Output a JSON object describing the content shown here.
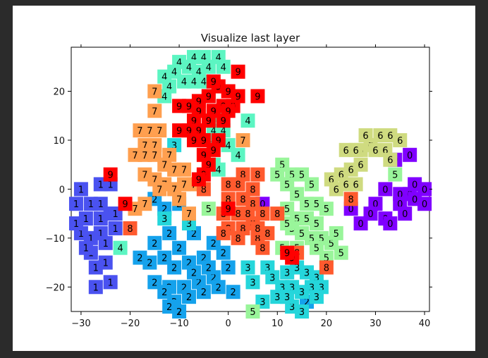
{
  "colors": {
    "page_background": "#2b2b2b",
    "figure_background": "#ffffff",
    "class_colors": {
      "0": "#8000ff",
      "1": "#4a52f0",
      "2": "#15a2ec",
      "3": "#25d6db",
      "4": "#5cf5c2",
      "5": "#99f59a",
      "6": "#cfdb80",
      "7": "#ff9f4f",
      "8": "#ff5a2e",
      "9": "#ff0000"
    }
  },
  "chart_data": {
    "type": "scatter",
    "title": "Visualize last layer",
    "xlabel": "",
    "ylabel": "",
    "xlim": [
      -32,
      41
    ],
    "ylim": [
      -25,
      29
    ],
    "xticks": [
      -30,
      -20,
      -10,
      0,
      10,
      20,
      30,
      40
    ],
    "yticks": [
      -20,
      -10,
      0,
      10,
      20
    ],
    "grid": false,
    "marker": "digit label drawn on a square colored by class",
    "series": [
      {
        "label": "0",
        "points": [
          [
            37,
            7
          ],
          [
            34,
            6
          ],
          [
            32,
            0
          ],
          [
            35,
            -1
          ],
          [
            37,
            -1
          ],
          [
            40,
            0
          ],
          [
            38,
            -2
          ],
          [
            30,
            -3
          ],
          [
            35,
            -3
          ],
          [
            29,
            -5
          ],
          [
            32,
            -6
          ],
          [
            36,
            -5
          ],
          [
            40,
            -3
          ],
          [
            7,
            -3
          ],
          [
            25,
            -4
          ],
          [
            33,
            -7
          ],
          [
            27,
            -7
          ],
          [
            38,
            1
          ]
        ]
      },
      {
        "label": "1",
        "points": [
          [
            -30,
            0
          ],
          [
            -26,
            1
          ],
          [
            -24,
            1
          ],
          [
            -28,
            -3
          ],
          [
            -31,
            -3
          ],
          [
            -26,
            -3
          ],
          [
            -24,
            -5
          ],
          [
            -29,
            -6
          ],
          [
            -26,
            -6
          ],
          [
            -23,
            -5
          ],
          [
            -30,
            -9
          ],
          [
            -28,
            -10
          ],
          [
            -26,
            -9
          ],
          [
            -25,
            -11
          ],
          [
            -28,
            -13
          ],
          [
            -27,
            -16
          ],
          [
            -25,
            -15
          ],
          [
            -24,
            -19
          ],
          [
            -27,
            -20
          ],
          [
            -23,
            -8
          ],
          [
            -31,
            -7
          ],
          [
            -29,
            -12
          ]
        ]
      },
      {
        "label": "2",
        "points": [
          [
            -15,
            -2
          ],
          [
            -13,
            -4
          ],
          [
            -10,
            -3
          ],
          [
            -15,
            -11
          ],
          [
            -12,
            -9
          ],
          [
            -10,
            -12
          ],
          [
            -7,
            -9
          ],
          [
            -3,
            -11
          ],
          [
            -1,
            -13
          ],
          [
            -5,
            -14
          ],
          [
            -8,
            -15
          ],
          [
            -11,
            -16
          ],
          [
            -13,
            -14
          ],
          [
            -16,
            -15
          ],
          [
            -18,
            -14
          ],
          [
            -15,
            -19
          ],
          [
            -12,
            -20
          ],
          [
            -9,
            -20
          ],
          [
            -6,
            -19
          ],
          [
            -3,
            -18
          ],
          [
            -5,
            -21
          ],
          [
            -8,
            -22
          ],
          [
            -11,
            -23
          ],
          [
            -13,
            -21
          ],
          [
            -2,
            -20
          ],
          [
            0,
            -16
          ],
          [
            -7,
            -17
          ],
          [
            -12,
            -24
          ],
          [
            -10,
            -25
          ],
          [
            1,
            -21
          ],
          [
            16,
            -23
          ],
          [
            -4,
            -16
          ]
        ]
      },
      {
        "label": "3",
        "points": [
          [
            -11,
            9
          ],
          [
            -13,
            -6
          ],
          [
            -8,
            -7
          ],
          [
            4,
            -16
          ],
          [
            8,
            -16
          ],
          [
            12,
            -17
          ],
          [
            14,
            -16
          ],
          [
            16,
            -17
          ],
          [
            18,
            -18
          ],
          [
            9,
            -18
          ],
          [
            11,
            -20
          ],
          [
            13,
            -20
          ],
          [
            15,
            -21
          ],
          [
            17,
            -20
          ],
          [
            19,
            -20
          ],
          [
            10,
            -22
          ],
          [
            7,
            -23
          ],
          [
            13,
            -24
          ],
          [
            15,
            -25
          ],
          [
            18,
            -22
          ],
          [
            12,
            -22
          ],
          [
            5,
            -19
          ]
        ]
      },
      {
        "label": "4",
        "points": [
          [
            -7,
            27
          ],
          [
            -5,
            27
          ],
          [
            -2,
            27
          ],
          [
            -10,
            26
          ],
          [
            -8,
            25
          ],
          [
            -6,
            24
          ],
          [
            -4,
            25
          ],
          [
            -1,
            25
          ],
          [
            -11,
            24
          ],
          [
            -13,
            23
          ],
          [
            -9,
            22
          ],
          [
            -7,
            22
          ],
          [
            -5,
            22
          ],
          [
            -12,
            21
          ],
          [
            -13,
            19
          ],
          [
            -4,
            19
          ],
          [
            -2,
            15
          ],
          [
            4,
            14
          ],
          [
            -3,
            12
          ],
          [
            -1,
            12
          ],
          [
            -4,
            10
          ],
          [
            0,
            9
          ],
          [
            2,
            7
          ],
          [
            -3,
            5
          ],
          [
            -2,
            4
          ],
          [
            -22,
            -12
          ]
        ]
      },
      {
        "label": "5",
        "points": [
          [
            11,
            5
          ],
          [
            13,
            3
          ],
          [
            10,
            3
          ],
          [
            15,
            3
          ],
          [
            17,
            1
          ],
          [
            12,
            1
          ],
          [
            14,
            -1
          ],
          [
            16,
            -3
          ],
          [
            18,
            -3
          ],
          [
            12,
            -4
          ],
          [
            14,
            -6
          ],
          [
            16,
            -6
          ],
          [
            18,
            -7
          ],
          [
            13,
            -8
          ],
          [
            15,
            -9
          ],
          [
            17,
            -10
          ],
          [
            19,
            -10
          ],
          [
            21,
            -11
          ],
          [
            23,
            -13
          ],
          [
            20,
            -14
          ],
          [
            11,
            -12
          ],
          [
            14,
            -12
          ],
          [
            18,
            -12
          ],
          [
            -4,
            -4
          ],
          [
            12,
            -7
          ],
          [
            5,
            -25
          ],
          [
            20,
            -4
          ],
          [
            22,
            -9
          ],
          [
            34,
            3
          ]
        ]
      },
      {
        "label": "6",
        "points": [
          [
            24,
            8
          ],
          [
            27,
            8
          ],
          [
            29,
            9
          ],
          [
            31,
            11
          ],
          [
            33,
            11
          ],
          [
            35,
            10
          ],
          [
            28,
            11
          ],
          [
            30,
            8
          ],
          [
            32,
            8
          ],
          [
            25,
            4
          ],
          [
            27,
            5
          ],
          [
            23,
            3
          ],
          [
            21,
            2
          ],
          [
            24,
            1
          ],
          [
            26,
            1
          ],
          [
            22,
            0
          ],
          [
            33,
            6
          ],
          [
            26,
            8
          ]
        ]
      },
      {
        "label": "7",
        "points": [
          [
            -15,
            20
          ],
          [
            -15,
            16
          ],
          [
            -18,
            12
          ],
          [
            -16,
            12
          ],
          [
            -14,
            12
          ],
          [
            -17,
            9
          ],
          [
            -15,
            9
          ],
          [
            -19,
            7
          ],
          [
            -17,
            7
          ],
          [
            -15,
            7
          ],
          [
            -12,
            7
          ],
          [
            -13,
            5
          ],
          [
            -11,
            4
          ],
          [
            -9,
            4
          ],
          [
            -17,
            3
          ],
          [
            -15,
            2
          ],
          [
            -13,
            1
          ],
          [
            -9,
            1
          ],
          [
            -11,
            0
          ],
          [
            -14,
            0
          ],
          [
            -7,
            1
          ],
          [
            -19,
            -4
          ],
          [
            -17,
            -3
          ],
          [
            3,
            10
          ],
          [
            -10,
            -2
          ],
          [
            -8,
            -5
          ]
        ]
      },
      {
        "label": "8",
        "points": [
          [
            -5,
            0
          ],
          [
            3,
            3
          ],
          [
            6,
            3
          ],
          [
            0,
            1
          ],
          [
            2,
            1
          ],
          [
            5,
            0
          ],
          [
            0,
            -2
          ],
          [
            3,
            -2
          ],
          [
            5,
            -3
          ],
          [
            7,
            -5
          ],
          [
            2,
            -5
          ],
          [
            -1,
            -5
          ],
          [
            0,
            -8
          ],
          [
            3,
            -8
          ],
          [
            5,
            -7
          ],
          [
            8,
            -9
          ],
          [
            6,
            -10
          ],
          [
            2,
            -10
          ],
          [
            -1,
            -9
          ],
          [
            10,
            -5
          ],
          [
            4,
            -5
          ],
          [
            6,
            -8
          ],
          [
            7,
            -12
          ],
          [
            14,
            -13
          ],
          [
            20,
            -16
          ],
          [
            -20,
            -8
          ],
          [
            25,
            -2
          ]
        ]
      },
      {
        "label": "9",
        "points": [
          [
            -24,
            3
          ],
          [
            -21,
            -3
          ],
          [
            2,
            24
          ],
          [
            6,
            19
          ],
          [
            -2,
            21
          ],
          [
            0,
            20
          ],
          [
            -4,
            19
          ],
          [
            -6,
            18
          ],
          [
            -8,
            17
          ],
          [
            -10,
            17
          ],
          [
            -1,
            17
          ],
          [
            1,
            17
          ],
          [
            -6,
            16
          ],
          [
            -3,
            16
          ],
          [
            0,
            16
          ],
          [
            -7,
            14
          ],
          [
            -4,
            14
          ],
          [
            -1,
            14
          ],
          [
            -8,
            12
          ],
          [
            -10,
            12
          ],
          [
            -6,
            12
          ],
          [
            -2,
            10
          ],
          [
            -5,
            10
          ],
          [
            -7,
            10
          ],
          [
            -3,
            8
          ],
          [
            -5,
            7
          ],
          [
            -4,
            5
          ],
          [
            -5,
            3
          ],
          [
            0,
            -4
          ],
          [
            -6,
            2
          ],
          [
            13,
            -14
          ],
          [
            12,
            -13
          ],
          [
            2,
            19
          ],
          [
            -3,
            22
          ]
        ]
      }
    ]
  }
}
